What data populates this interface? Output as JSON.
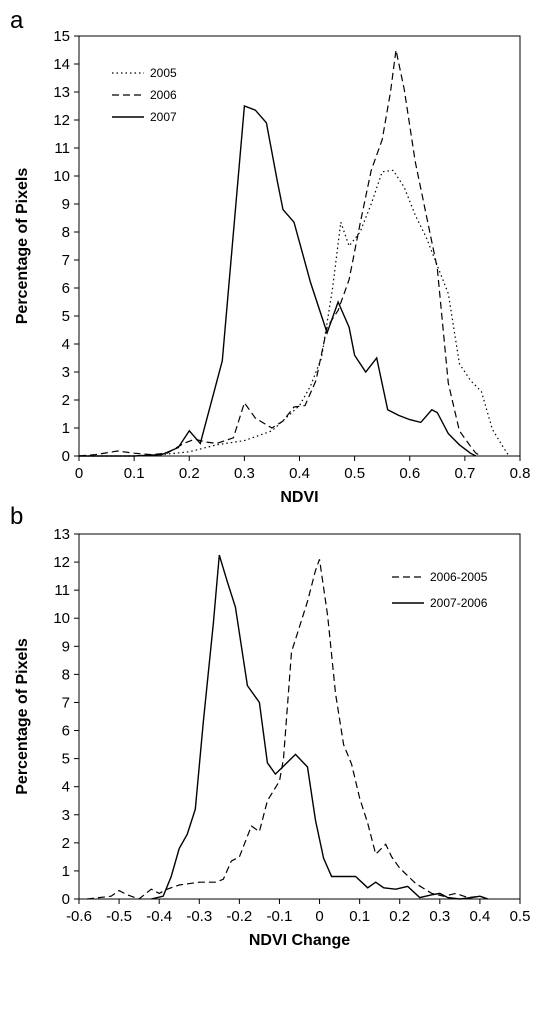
{
  "chart_data": [
    {
      "type": "line",
      "panel_label": "a",
      "xlabel": "NDVI",
      "ylabel": "Percentage of Pixels",
      "xlim": [
        0,
        0.8
      ],
      "ylim": [
        0,
        15
      ],
      "xticks": [
        "0",
        "0.1",
        "0.2",
        "0.3",
        "0.4",
        "0.5",
        "0.6",
        "0.7",
        "0.8"
      ],
      "yticks": [
        "0",
        "1",
        "2",
        "3",
        "4",
        "5",
        "6",
        "7",
        "8",
        "9",
        "10",
        "11",
        "12",
        "13",
        "14",
        "15"
      ],
      "grid": false,
      "legend_position": "top-left",
      "series": [
        {
          "name": "2005",
          "style": "dotted",
          "points": [
            [
              0,
              0
            ],
            [
              0.05,
              0
            ],
            [
              0.1,
              0
            ],
            [
              0.15,
              0.05
            ],
            [
              0.2,
              0.15
            ],
            [
              0.25,
              0.4
            ],
            [
              0.3,
              0.55
            ],
            [
              0.35,
              0.9
            ],
            [
              0.4,
              1.8
            ],
            [
              0.42,
              2.5
            ],
            [
              0.44,
              3.5
            ],
            [
              0.46,
              6.0
            ],
            [
              0.475,
              8.35
            ],
            [
              0.49,
              7.5
            ],
            [
              0.51,
              8.0
            ],
            [
              0.53,
              9.0
            ],
            [
              0.55,
              10.15
            ],
            [
              0.57,
              10.2
            ],
            [
              0.59,
              9.6
            ],
            [
              0.61,
              8.6
            ],
            [
              0.63,
              7.8
            ],
            [
              0.65,
              6.8
            ],
            [
              0.67,
              5.8
            ],
            [
              0.69,
              3.3
            ],
            [
              0.71,
              2.7
            ],
            [
              0.73,
              2.3
            ],
            [
              0.75,
              0.95
            ],
            [
              0.77,
              0.3
            ],
            [
              0.78,
              0
            ]
          ]
        },
        {
          "name": "2006",
          "style": "dashed",
          "points": [
            [
              0,
              0
            ],
            [
              0.03,
              0.05
            ],
            [
              0.07,
              0.18
            ],
            [
              0.1,
              0.1
            ],
            [
              0.13,
              0.05
            ],
            [
              0.16,
              0.1
            ],
            [
              0.19,
              0.45
            ],
            [
              0.21,
              0.6
            ],
            [
              0.23,
              0.5
            ],
            [
              0.25,
              0.45
            ],
            [
              0.28,
              0.65
            ],
            [
              0.3,
              1.9
            ],
            [
              0.32,
              1.35
            ],
            [
              0.35,
              1.0
            ],
            [
              0.37,
              1.25
            ],
            [
              0.39,
              1.75
            ],
            [
              0.41,
              1.8
            ],
            [
              0.43,
              2.7
            ],
            [
              0.45,
              4.6
            ],
            [
              0.47,
              5.2
            ],
            [
              0.49,
              6.3
            ],
            [
              0.51,
              8.3
            ],
            [
              0.53,
              10.2
            ],
            [
              0.55,
              11.3
            ],
            [
              0.565,
              13.0
            ],
            [
              0.575,
              14.5
            ],
            [
              0.59,
              13.1
            ],
            [
              0.61,
              10.5
            ],
            [
              0.63,
              8.6
            ],
            [
              0.65,
              6.7
            ],
            [
              0.67,
              2.6
            ],
            [
              0.69,
              0.9
            ],
            [
              0.71,
              0.35
            ],
            [
              0.72,
              0.1
            ],
            [
              0.73,
              0
            ]
          ]
        },
        {
          "name": "2007",
          "style": "solid",
          "points": [
            [
              0,
              0
            ],
            [
              0.05,
              0
            ],
            [
              0.1,
              0
            ],
            [
              0.15,
              0.05
            ],
            [
              0.18,
              0.3
            ],
            [
              0.2,
              0.9
            ],
            [
              0.22,
              0.45
            ],
            [
              0.26,
              3.4
            ],
            [
              0.3,
              12.5
            ],
            [
              0.32,
              12.35
            ],
            [
              0.34,
              11.9
            ],
            [
              0.36,
              9.8
            ],
            [
              0.37,
              8.8
            ],
            [
              0.39,
              8.35
            ],
            [
              0.42,
              6.2
            ],
            [
              0.45,
              4.4
            ],
            [
              0.47,
              5.5
            ],
            [
              0.49,
              4.6
            ],
            [
              0.5,
              3.6
            ],
            [
              0.52,
              3.0
            ],
            [
              0.54,
              3.5
            ],
            [
              0.56,
              1.65
            ],
            [
              0.58,
              1.45
            ],
            [
              0.6,
              1.3
            ],
            [
              0.62,
              1.2
            ],
            [
              0.64,
              1.65
            ],
            [
              0.65,
              1.55
            ],
            [
              0.67,
              0.8
            ],
            [
              0.69,
              0.4
            ],
            [
              0.71,
              0.1
            ],
            [
              0.72,
              0
            ]
          ]
        }
      ]
    },
    {
      "type": "line",
      "panel_label": "b",
      "xlabel": "NDVI Change",
      "ylabel": "Percentage of Pixels",
      "xlim": [
        -0.6,
        0.5
      ],
      "ylim": [
        0,
        13
      ],
      "xticks": [
        "-0.6",
        "-0.5",
        "-0.4",
        "-0.3",
        "-0.2",
        "-0.1",
        "0",
        "0.1",
        "0.2",
        "0.3",
        "0.4",
        "0.5"
      ],
      "yticks": [
        "0",
        "1",
        "2",
        "3",
        "4",
        "5",
        "6",
        "7",
        "8",
        "9",
        "10",
        "11",
        "12",
        "13"
      ],
      "grid": false,
      "legend_position": "top-right",
      "series": [
        {
          "name": "2006-2005",
          "style": "dashed",
          "points": [
            [
              -0.58,
              0
            ],
            [
              -0.55,
              0.05
            ],
            [
              -0.52,
              0.1
            ],
            [
              -0.5,
              0.3
            ],
            [
              -0.48,
              0.15
            ],
            [
              -0.45,
              0.0
            ],
            [
              -0.42,
              0.35
            ],
            [
              -0.4,
              0.2
            ],
            [
              -0.38,
              0.35
            ],
            [
              -0.35,
              0.5
            ],
            [
              -0.3,
              0.6
            ],
            [
              -0.26,
              0.6
            ],
            [
              -0.24,
              0.7
            ],
            [
              -0.22,
              1.35
            ],
            [
              -0.2,
              1.5
            ],
            [
              -0.17,
              2.6
            ],
            [
              -0.15,
              2.4
            ],
            [
              -0.13,
              3.5
            ],
            [
              -0.1,
              4.2
            ],
            [
              -0.09,
              5.0
            ],
            [
              -0.07,
              8.8
            ],
            [
              -0.05,
              9.7
            ],
            [
              -0.03,
              10.6
            ],
            [
              -0.01,
              11.7
            ],
            [
              0,
              12.1
            ],
            [
              0.02,
              10.1
            ],
            [
              0.04,
              7.3
            ],
            [
              0.06,
              5.5
            ],
            [
              0.08,
              4.8
            ],
            [
              0.1,
              3.6
            ],
            [
              0.12,
              2.7
            ],
            [
              0.14,
              1.6
            ],
            [
              0.165,
              1.95
            ],
            [
              0.18,
              1.5
            ],
            [
              0.2,
              1.1
            ],
            [
              0.24,
              0.55
            ],
            [
              0.28,
              0.2
            ],
            [
              0.31,
              0.1
            ],
            [
              0.34,
              0.2
            ],
            [
              0.37,
              0.05
            ],
            [
              0.4,
              0.1
            ],
            [
              0.42,
              0
            ]
          ]
        },
        {
          "name": "2007-2006",
          "style": "solid",
          "points": [
            [
              -0.42,
              0
            ],
            [
              -0.39,
              0.1
            ],
            [
              -0.37,
              0.8
            ],
            [
              -0.35,
              1.8
            ],
            [
              -0.33,
              2.3
            ],
            [
              -0.31,
              3.2
            ],
            [
              -0.29,
              6.3
            ],
            [
              -0.265,
              9.8
            ],
            [
              -0.25,
              12.25
            ],
            [
              -0.23,
              11.3
            ],
            [
              -0.21,
              10.4
            ],
            [
              -0.18,
              7.6
            ],
            [
              -0.15,
              7.0
            ],
            [
              -0.13,
              4.85
            ],
            [
              -0.11,
              4.45
            ],
            [
              -0.06,
              5.15
            ],
            [
              -0.03,
              4.7
            ],
            [
              -0.01,
              2.8
            ],
            [
              0.01,
              1.45
            ],
            [
              0.03,
              0.8
            ],
            [
              0.07,
              0.8
            ],
            [
              0.09,
              0.8
            ],
            [
              0.12,
              0.4
            ],
            [
              0.14,
              0.6
            ],
            [
              0.16,
              0.4
            ],
            [
              0.19,
              0.35
            ],
            [
              0.22,
              0.45
            ],
            [
              0.25,
              0.05
            ],
            [
              0.28,
              0.15
            ],
            [
              0.3,
              0.2
            ],
            [
              0.32,
              0.05
            ],
            [
              0.35,
              0.0
            ],
            [
              0.38,
              0.05
            ],
            [
              0.4,
              0.1
            ],
            [
              0.42,
              0
            ]
          ]
        }
      ]
    }
  ]
}
